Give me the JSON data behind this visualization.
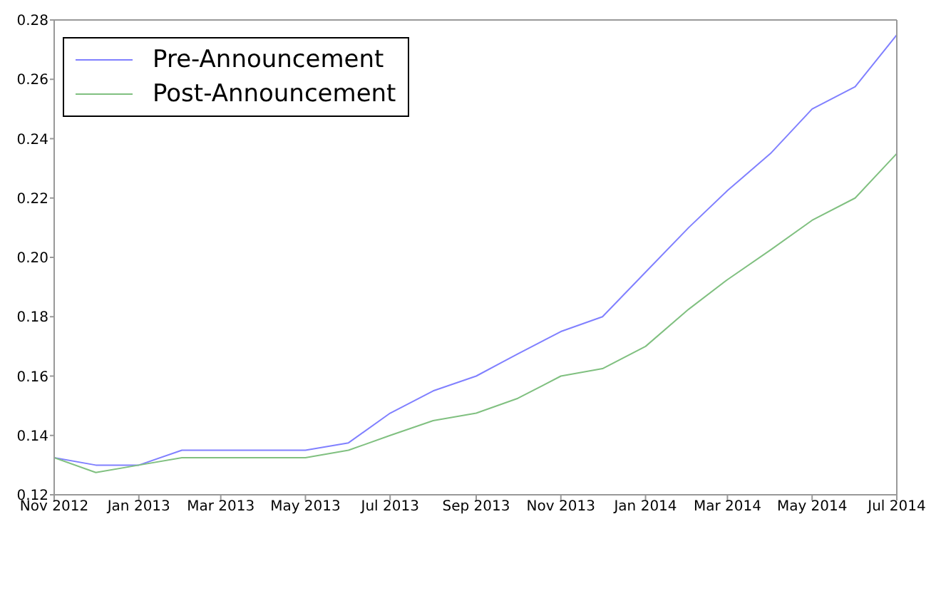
{
  "chart_data": {
    "type": "line",
    "x": [
      "2012-11",
      "2012-12",
      "2013-01",
      "2013-02",
      "2013-03",
      "2013-04",
      "2013-05",
      "2013-06",
      "2013-07",
      "2013-08",
      "2013-09",
      "2013-10",
      "2013-11",
      "2013-12",
      "2014-01",
      "2014-02",
      "2014-03",
      "2014-04",
      "2014-05",
      "2014-06",
      "2014-07"
    ],
    "series": [
      {
        "name": "Pre-Announcement",
        "color": "#8080ff",
        "values": [
          0.1325,
          0.13,
          0.13,
          0.135,
          0.135,
          0.135,
          0.135,
          0.1375,
          0.1475,
          0.155,
          0.16,
          0.1675,
          0.175,
          0.18,
          0.195,
          0.21,
          0.2225,
          0.235,
          0.25,
          0.2575,
          0.275
        ]
      },
      {
        "name": "Post-Announcement",
        "color": "#80c080",
        "values": [
          0.1325,
          0.1275,
          0.13,
          0.1325,
          0.1325,
          0.1325,
          0.1325,
          0.135,
          0.14,
          0.145,
          0.1475,
          0.1525,
          0.16,
          0.1625,
          0.17,
          0.1825,
          0.1925,
          0.2025,
          0.2125,
          0.22,
          0.235
        ]
      }
    ],
    "xlim": [
      "2012-11",
      "2014-07"
    ],
    "xticks": [
      {
        "value": "2012-11",
        "label": "Nov 2012"
      },
      {
        "value": "2013-01",
        "label": "Jan 2013"
      },
      {
        "value": "2013-03",
        "label": "Mar 2013"
      },
      {
        "value": "2013-05",
        "label": "May 2013"
      },
      {
        "value": "2013-07",
        "label": "Jul 2013"
      },
      {
        "value": "2013-09",
        "label": "Sep 2013"
      },
      {
        "value": "2013-11",
        "label": "Nov 2013"
      },
      {
        "value": "2014-01",
        "label": "Jan 2014"
      },
      {
        "value": "2014-03",
        "label": "Mar 2014"
      },
      {
        "value": "2014-05",
        "label": "May 2014"
      },
      {
        "value": "2014-07",
        "label": "Jul 2014"
      }
    ],
    "ylim": [
      0.12,
      0.28
    ],
    "yticks": [
      0.12,
      0.14,
      0.16,
      0.18,
      {
        "value": 0.2,
        "label": "0.20"
      },
      0.22,
      0.24,
      0.26,
      0.28
    ],
    "legend": "top left",
    "grid": false,
    "marker": "none",
    "line_style": "solid"
  }
}
